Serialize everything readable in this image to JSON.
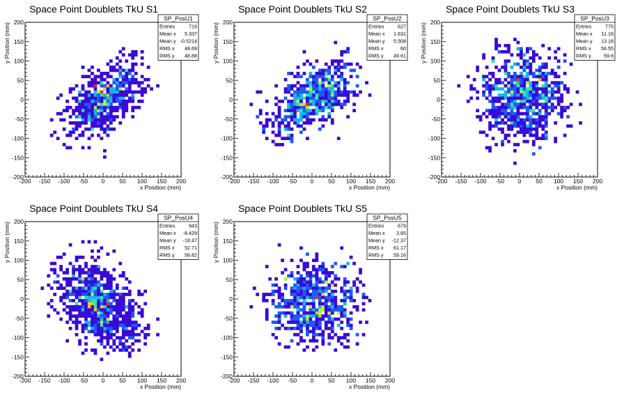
{
  "canvas_background": "#ffffff",
  "chart_data": [
    {
      "type": "heatmap",
      "title": "Space Point Doublets TkU S1",
      "xlabel": "x Position (mm)",
      "ylabel": "y Position (mm)",
      "xlim": [
        -200,
        200
      ],
      "ylim": [
        -200,
        200
      ],
      "xticks": [
        "-200",
        "-150",
        "-100",
        "-50",
        "0",
        "50",
        "100",
        "150",
        "200"
      ],
      "yticks": [
        "-200",
        "-150",
        "-100",
        "-50",
        "0",
        "50",
        "100",
        "150",
        "200"
      ],
      "grid": false,
      "stats": {
        "name": "SP_PosU1",
        "rows": [
          {
            "label": "Entries",
            "value": "719"
          },
          {
            "label": "Mean x",
            "value": "5.337"
          },
          {
            "label": "Mean y",
            "value": "-0.5214"
          },
          {
            "label": "RMS x",
            "value": "48.69"
          },
          {
            "label": "RMS y",
            "value": "48.88"
          }
        ]
      },
      "center": [
        5,
        0
      ],
      "spread": [
        49,
        49
      ],
      "correlation": 0.55,
      "entries": 719
    },
    {
      "type": "heatmap",
      "title": "Space Point Doublets TkU S2",
      "xlabel": "x Position (mm)",
      "ylabel": "y Position (mm)",
      "xlim": [
        -200,
        200
      ],
      "ylim": [
        -200,
        200
      ],
      "xticks": [
        "-200",
        "-150",
        "-100",
        "-50",
        "0",
        "50",
        "100",
        "150",
        "200"
      ],
      "yticks": [
        "-200",
        "-150",
        "-100",
        "-50",
        "0",
        "50",
        "100",
        "150",
        "200"
      ],
      "grid": false,
      "stats": {
        "name": "SP_PosU2",
        "rows": [
          {
            "label": "Entries",
            "value": "627"
          },
          {
            "label": "Mean x",
            "value": "1.631"
          },
          {
            "label": "Mean y",
            "value": "5.508"
          },
          {
            "label": "RMS x",
            "value": "60"
          },
          {
            "label": "RMS y",
            "value": "49.61"
          }
        ]
      },
      "center": [
        2,
        6
      ],
      "spread": [
        60,
        50
      ],
      "correlation": 0.6,
      "entries": 627
    },
    {
      "type": "heatmap",
      "title": "Space Point Doublets TkU S3",
      "xlabel": "x Position (mm)",
      "ylabel": "y Position (mm)",
      "xlim": [
        -200,
        200
      ],
      "ylim": [
        -200,
        200
      ],
      "xticks": [
        "-200",
        "-150",
        "-100",
        "-50",
        "0",
        "50",
        "100",
        "150",
        "200"
      ],
      "yticks": [
        "-200",
        "-150",
        "-100",
        "-50",
        "0",
        "50",
        "100",
        "150",
        "200"
      ],
      "grid": false,
      "stats": {
        "name": "SP_PosU3",
        "rows": [
          {
            "label": "Entries",
            "value": "775"
          },
          {
            "label": "Mean x",
            "value": "11.16"
          },
          {
            "label": "Mean y",
            "value": "13.18"
          },
          {
            "label": "RMS x",
            "value": "56.55"
          },
          {
            "label": "RMS y",
            "value": "59.6"
          }
        ]
      },
      "center": [
        11,
        13
      ],
      "spread": [
        57,
        60
      ],
      "correlation": 0.0,
      "entries": 775
    },
    {
      "type": "heatmap",
      "title": "Space Point Doublets TkU S4",
      "xlabel": "x Position (mm)",
      "ylabel": "y Position (mm)",
      "xlim": [
        -200,
        200
      ],
      "ylim": [
        -200,
        200
      ],
      "xticks": [
        "-200",
        "-150",
        "-100",
        "-50",
        "0",
        "50",
        "100",
        "150",
        "200"
      ],
      "yticks": [
        "-200",
        "-150",
        "-100",
        "-50",
        "0",
        "50",
        "100",
        "150",
        "200"
      ],
      "grid": false,
      "stats": {
        "name": "SP_PosU4",
        "rows": [
          {
            "label": "Entries",
            "value": "943"
          },
          {
            "label": "Mean x",
            "value": "-8.429"
          },
          {
            "label": "Mean y",
            "value": "-18.47"
          },
          {
            "label": "RMS x",
            "value": "52.71"
          },
          {
            "label": "RMS y",
            "value": "56.82"
          }
        ]
      },
      "center": [
        -8,
        -18
      ],
      "spread": [
        53,
        57
      ],
      "correlation": -0.45,
      "entries": 943
    },
    {
      "type": "heatmap",
      "title": "Space Point Doublets TkU S5",
      "xlabel": "x Position (mm)",
      "ylabel": "y Position (mm)",
      "xlim": [
        -200,
        200
      ],
      "ylim": [
        -200,
        200
      ],
      "xticks": [
        "-200",
        "-150",
        "-100",
        "-50",
        "0",
        "50",
        "100",
        "150",
        "200"
      ],
      "yticks": [
        "-200",
        "-150",
        "-100",
        "-50",
        "0",
        "50",
        "100",
        "150",
        "200"
      ],
      "grid": false,
      "stats": {
        "name": "SP_PosU5",
        "rows": [
          {
            "label": "Entries",
            "value": "679"
          },
          {
            "label": "Mean x",
            "value": "3.65"
          },
          {
            "label": "Mean y",
            "value": "-12.37"
          },
          {
            "label": "RMS x",
            "value": "61.17"
          },
          {
            "label": "RMS y",
            "value": "59.16"
          }
        ]
      },
      "center": [
        4,
        -12
      ],
      "spread": [
        61,
        59
      ],
      "correlation": 0.0,
      "entries": 679
    }
  ],
  "palette": [
    "#3a0ad6",
    "#1c5cf5",
    "#16b8e8",
    "#2ee6b0",
    "#b5f03a",
    "#f5c81a",
    "#e8300a"
  ]
}
